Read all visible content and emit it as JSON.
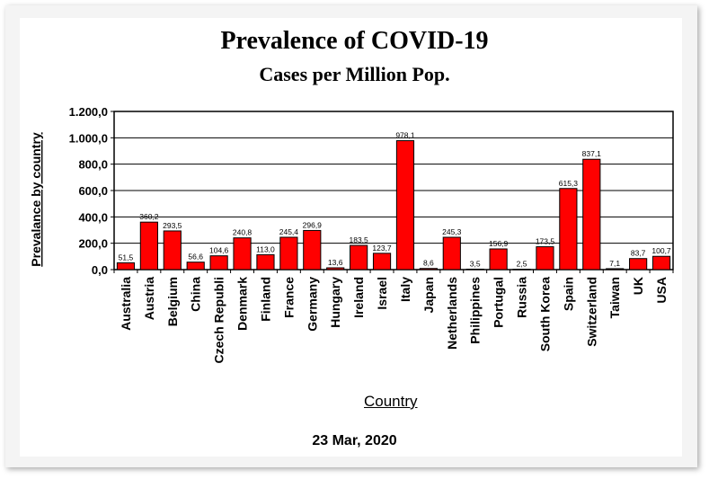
{
  "chart_data": {
    "type": "bar",
    "title": "Prevalence of COVID-19",
    "subtitle": "Cases per Million Pop.",
    "xlabel": "Country",
    "ylabel": "Prevalance by country",
    "footer": "23 Mar, 2020",
    "ylim": [
      0,
      1200
    ],
    "yticks": [
      "0,0",
      "200,0",
      "400,0",
      "600,0",
      "800,0",
      "1.000,0",
      "1.200,0"
    ],
    "grid": true,
    "legend": "none",
    "bar_color": "#ff0000",
    "categories": [
      "Australia",
      "Austria",
      "Belgium",
      "China",
      "Czech Republi",
      "Denmark",
      "Finland",
      "France",
      "Germany",
      "Hungary",
      "Ireland",
      "Israel",
      "Italy",
      "Japan",
      "Netherlands",
      "Philippines",
      "Portugal",
      "Russia",
      "South Korea",
      "Spain",
      "Switzerland",
      "Taiwan",
      "UK",
      "USA"
    ],
    "values": [
      51.5,
      360.2,
      293.5,
      56.6,
      104.6,
      240.8,
      113.0,
      245.4,
      296.9,
      13.6,
      183.5,
      123.7,
      978.1,
      8.6,
      245.3,
      3.5,
      156.9,
      2.5,
      173.5,
      615.3,
      837.1,
      7.1,
      83.7,
      100.7
    ],
    "value_labels": [
      "51,5",
      "360,2",
      "293,5",
      "56,6",
      "104,6",
      "240,8",
      "113,0",
      "245,4",
      "296,9",
      "13,6",
      "183,5",
      "123,7",
      "978,1",
      "8,6",
      "245,3",
      "3,5",
      "156,9",
      "2,5",
      "173,5",
      "615,3",
      "837,1",
      "7,1",
      "83,7",
      "100,7"
    ]
  }
}
